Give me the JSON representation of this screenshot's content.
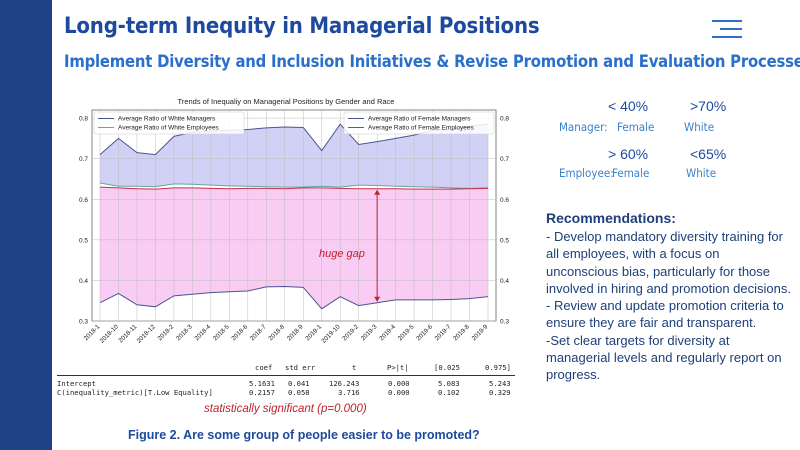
{
  "slide": {
    "title": "Long-term Inequity in Managerial Positions",
    "subtitle": "Implement Diversity and Inclusion Initiatives & Revise Promotion and Evaluation Processes",
    "caption": "Figure 2. Are some group of people easier to be promoted?",
    "significance_note": "statistically significant (p=0.000)",
    "menu_icon": "hamburger-menu-icon",
    "accent_color": "#1f4287"
  },
  "kpis": {
    "manager_label": "Manager:",
    "employee_label": "Employee:",
    "manager_female_value": "< 40%",
    "manager_female_label": "Female",
    "manager_white_value": ">70%",
    "manager_white_label": "White",
    "employee_female_value": "> 60%",
    "employee_female_label": "Female",
    "employee_white_value": "<65%",
    "employee_white_label": "White"
  },
  "recommendations": {
    "title": "Recommendations:",
    "items": [
      "- Develop mandatory diversity training for all employees, with a focus on unconscious bias, particularly for those involved in hiring and promotion decisions.",
      "- Review and update promotion criteria to ensure they are fair and transparent.",
      "-Set clear targets for diversity at managerial levels and regularly report on progress."
    ]
  },
  "regression": {
    "headers": [
      "coef",
      "std err",
      "t",
      "P>|t|",
      "[0.025",
      "0.975]"
    ],
    "rows": [
      {
        "name": "Intercept",
        "values": [
          "5.1631",
          "0.041",
          "126.243",
          "0.000",
          "5.083",
          "5.243"
        ]
      },
      {
        "name": "C(inequality_metric)[T.Low Equality]",
        "values": [
          "0.2157",
          "0.058",
          "3.716",
          "0.000",
          "0.102",
          "0.329"
        ]
      }
    ]
  },
  "chart_data": {
    "type": "line",
    "title": "Trends of Inequaliy on Managerial Positions by Gender and Race",
    "xlabel": "",
    "ylabel": "",
    "ylim": [
      0.3,
      0.82
    ],
    "yticks": [
      0.3,
      0.4,
      0.5,
      0.6,
      0.7,
      0.8
    ],
    "grid": true,
    "x": [
      "2018-1",
      "2018-10",
      "2018-11",
      "2018-12",
      "2018-2",
      "2018-3",
      "2018-4",
      "2018-5",
      "2018-6",
      "2018-7",
      "2018-8",
      "2018-9",
      "2019-1",
      "2019-10",
      "2019-2",
      "2019-3",
      "2019-4",
      "2019-5",
      "2019-6",
      "2019-7",
      "2019-8",
      "2019-9"
    ],
    "series": [
      {
        "name": "Average Ratio of White Managers",
        "color": "#4a5590",
        "axis": "left",
        "values": [
          0.71,
          0.75,
          0.715,
          0.71,
          0.755,
          0.765,
          0.768,
          0.77,
          0.772,
          0.776,
          0.778,
          0.777,
          0.72,
          0.785,
          0.735,
          0.742,
          0.75,
          0.758,
          0.77,
          0.772,
          0.78,
          0.785
        ]
      },
      {
        "name": "Average Ratio of White Employees",
        "color": "#5fa8a0",
        "axis": "left",
        "values": [
          0.64,
          0.632,
          0.632,
          0.631,
          0.638,
          0.637,
          0.635,
          0.633,
          0.632,
          0.631,
          0.63,
          0.63,
          0.632,
          0.63,
          0.635,
          0.634,
          0.632,
          0.631,
          0.63,
          0.628,
          0.627,
          0.628
        ]
      },
      {
        "name": "Average Ratio of Female Managers",
        "color": "#4a5590",
        "axis": "right",
        "values": [
          0.345,
          0.368,
          0.34,
          0.335,
          0.362,
          0.366,
          0.37,
          0.372,
          0.374,
          0.384,
          0.385,
          0.383,
          0.33,
          0.36,
          0.338,
          0.345,
          0.352,
          0.352,
          0.352,
          0.353,
          0.355,
          0.36
        ]
      },
      {
        "name": "Average Ratio of Female Employees",
        "color": "#c8304a",
        "axis": "right",
        "values": [
          0.63,
          0.628,
          0.626,
          0.625,
          0.628,
          0.628,
          0.627,
          0.626,
          0.627,
          0.627,
          0.626,
          0.628,
          0.628,
          0.627,
          0.626,
          0.626,
          0.626,
          0.625,
          0.625,
          0.625,
          0.626,
          0.627
        ]
      }
    ],
    "annotation": {
      "text": "huge gap",
      "color": "#c0202a"
    }
  }
}
